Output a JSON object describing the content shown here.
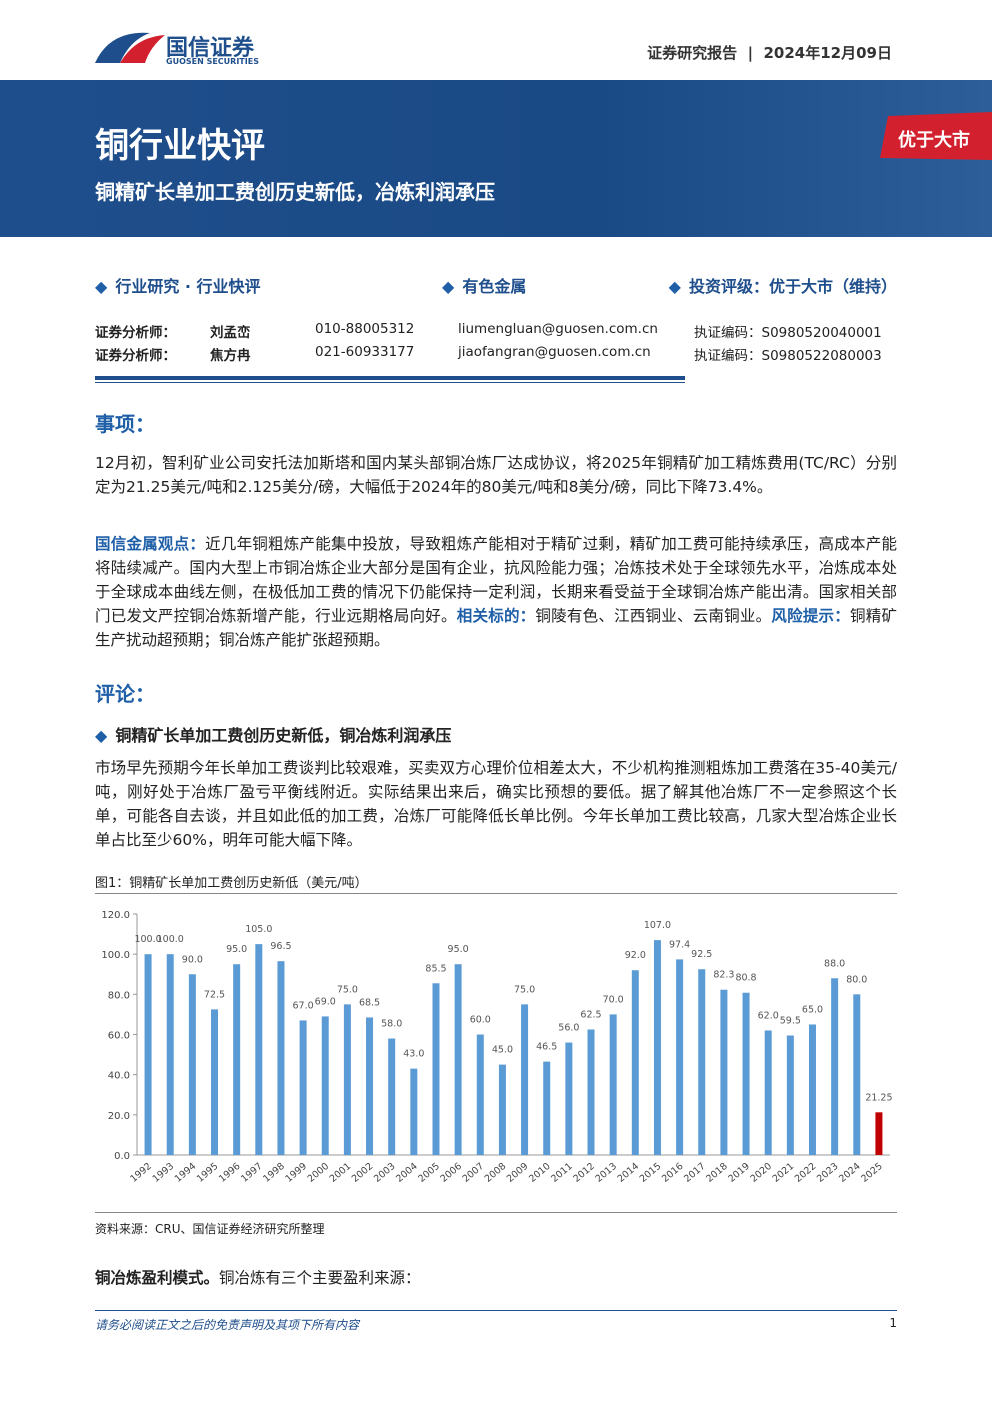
{
  "header": {
    "logo_cn": "国信证券",
    "logo_en": "GUOSEN SECURITIES",
    "report_type": "证券研究报告",
    "date": "2024年12月09日"
  },
  "banner": {
    "title": "铜行业快评",
    "subtitle": "铜精矿长单加工费创历史新低，冶炼利润承压",
    "rating_tab": "优于大市"
  },
  "tags": [
    "行业研究 · 行业快评",
    "有色金属",
    "投资评级：优于大市（维持）"
  ],
  "analysts": [
    {
      "role": "证券分析师：",
      "name": "刘孟峦",
      "phone": "010-88005312",
      "email": "liumengluan@guosen.com.cn",
      "cert": "执证编码：S0980520040001"
    },
    {
      "role": "证券分析师：",
      "name": "焦方冉",
      "phone": "021-60933177",
      "email": "jiaofangran@guosen.com.cn",
      "cert": "执证编码：S0980522080003"
    }
  ],
  "section1": {
    "heading": "事项：",
    "paragraph": "12月初，智利矿业公司安托法加斯塔和国内某头部铜冶炼厂达成协议，将2025年铜精矿加工精炼费用(TC/RC）分别定为21.25美元/吨和2.125美分/磅，大幅低于2024年的80美元/吨和8美分/磅，同比下降73.4%。",
    "view_label": "国信金属观点：",
    "view_text": "近几年铜粗炼产能集中投放，导致粗炼产能相对于精矿过剩，精矿加工费可能持续承压，高成本产能将陆续减产。国内大型上市铜冶炼企业大部分是国有企业，抗风险能力强；冶炼技术处于全球领先水平，冶炼成本处于全球成本曲线左侧，在极低加工费的情况下仍能保持一定利润，长期来看受益于全球铜冶炼产能出清。国家相关部门已发文严控铜冶炼新增产能，行业远期格局向好。",
    "related_label": "相关标的：",
    "related_text": "铜陵有色、江西铜业、云南铜业。",
    "risk_label": "风险提示：",
    "risk_text": "铜精矿生产扰动超预期；铜冶炼产能扩张超预期。"
  },
  "section2": {
    "heading": "评论：",
    "bullet": "铜精矿长单加工费创历史新低，铜冶炼利润承压",
    "paragraph": "市场早先预期今年长单加工费谈判比较艰难，买卖双方心理价位相差太大，不少机构推测粗炼加工费落在35-40美元/吨，刚好处于冶炼厂盈亏平衡线附近。实际结果出来后，确实比预想的要低。据了解其他冶炼厂不一定参照这个长单，可能各自去谈，并且如此低的加工费，冶炼厂可能降低长单比例。今年长单加工费比较高，几家大型冶炼企业长单占比至少60%，明年可能大幅下降。"
  },
  "chart_data": {
    "type": "bar",
    "title": "图1：铜精矿长单加工费创历史新低（美元/吨）",
    "source": "资料来源：CRU、国信证券经济研究所整理",
    "categories": [
      "1992",
      "1993",
      "1994",
      "1995",
      "1996",
      "1997",
      "1998",
      "1999",
      "2000",
      "2001",
      "2002",
      "2003",
      "2004",
      "2005",
      "2006",
      "2007",
      "2008",
      "2009",
      "2010",
      "2011",
      "2012",
      "2013",
      "2014",
      "2015",
      "2016",
      "2017",
      "2018",
      "2019",
      "2020",
      "2021",
      "2022",
      "2023",
      "2024",
      "2025"
    ],
    "values": [
      100,
      100,
      90,
      72.5,
      95,
      105,
      96.5,
      67,
      69,
      75,
      68.5,
      58,
      43,
      85.5,
      95,
      60,
      45,
      75,
      46.5,
      56,
      62.5,
      70,
      92,
      107,
      97.4,
      92.5,
      82.3,
      80.8,
      62,
      59.5,
      65,
      88,
      80,
      21.25
    ],
    "value_labels": [
      "100.0",
      "100.0",
      "90.0",
      "72.5",
      "95.0",
      "105.0",
      "96.5",
      "67.0",
      "69.0",
      "75.0",
      "68.5",
      "58.0",
      "43.0",
      "85.5",
      "95.0",
      "60.0",
      "45.0",
      "75.0",
      "46.5",
      "56.0",
      "62.5",
      "70.0",
      "92.0",
      "107.0",
      "97.4",
      "92.5",
      "82.3",
      "80.8",
      "62.0",
      "59.5",
      "65.0",
      "88.0",
      "80.0",
      "21.25"
    ],
    "colors": [
      "#5b9bd5",
      "#5b9bd5",
      "#5b9bd5",
      "#5b9bd5",
      "#5b9bd5",
      "#5b9bd5",
      "#5b9bd5",
      "#5b9bd5",
      "#5b9bd5",
      "#5b9bd5",
      "#5b9bd5",
      "#5b9bd5",
      "#5b9bd5",
      "#5b9bd5",
      "#5b9bd5",
      "#5b9bd5",
      "#5b9bd5",
      "#5b9bd5",
      "#5b9bd5",
      "#5b9bd5",
      "#5b9bd5",
      "#5b9bd5",
      "#5b9bd5",
      "#5b9bd5",
      "#5b9bd5",
      "#5b9bd5",
      "#5b9bd5",
      "#5b9bd5",
      "#5b9bd5",
      "#5b9bd5",
      "#5b9bd5",
      "#5b9bd5",
      "#5b9bd5",
      "#c00000"
    ],
    "ylim": [
      0,
      120
    ],
    "yticks": [
      {
        "value": 0,
        "label": "0.0"
      },
      {
        "value": 20,
        "label": "20.0"
      },
      {
        "value": 40,
        "label": "40.0"
      },
      {
        "value": 60,
        "label": "60.0"
      },
      {
        "value": 80,
        "label": "80.0"
      },
      {
        "value": 100,
        "label": "100.0"
      },
      {
        "value": 120,
        "label": "120.0"
      }
    ]
  },
  "closing": {
    "label": "铜冶炼盈利模式。",
    "text": "铜冶炼有三个主要盈利来源："
  },
  "footer": {
    "disclaimer": "请务必阅读正文之后的免责声明及其项下所有内容",
    "page": "1"
  }
}
